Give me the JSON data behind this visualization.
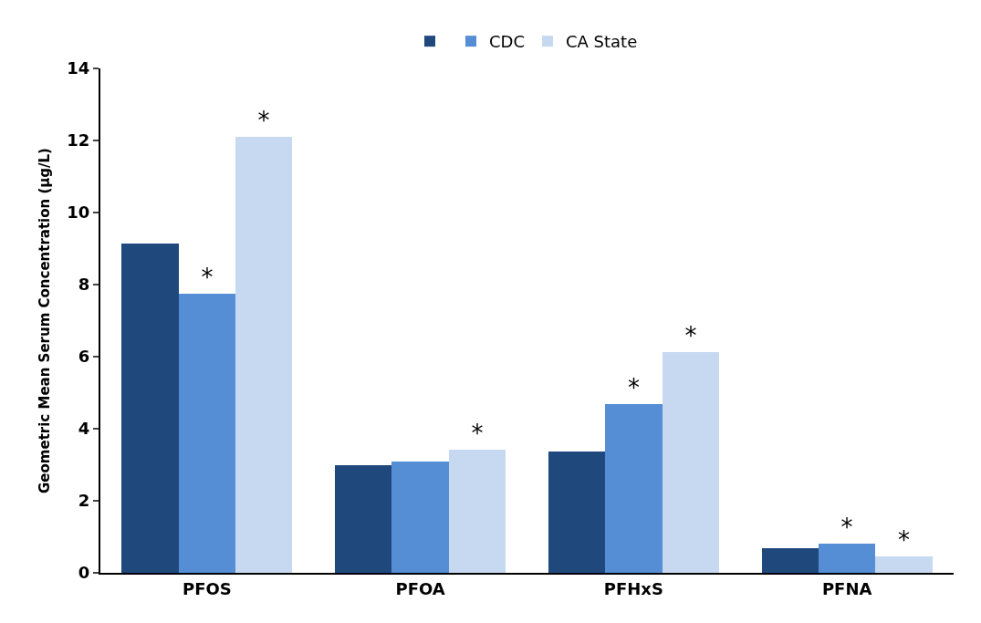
{
  "chart_data": {
    "type": "bar",
    "ylabel": "Geometric Mean Serum Concentration (µg/L)",
    "categories": [
      "PFOS",
      "PFOA",
      "PFHxS",
      "PFNA"
    ],
    "series": [
      {
        "color": "#1f497d",
        "values": [
          9.15,
          2.98,
          3.37,
          0.68
        ]
      },
      {
        "name": "CDC",
        "color": "#558ed5",
        "values": [
          7.75,
          3.09,
          4.68,
          0.8
        ],
        "value_labels": [
          "*",
          null,
          "*",
          "*"
        ]
      },
      {
        "name": "CA State",
        "color": "#c6d9f1",
        "values": [
          12.1,
          3.42,
          6.12,
          0.46
        ],
        "value_labels": [
          "*",
          "*",
          "*",
          "*"
        ]
      }
    ],
    "ylim": [
      0,
      14
    ],
    "yticks": [
      0,
      2,
      4,
      6,
      8,
      10,
      12,
      14
    ],
    "legend": "top"
  }
}
